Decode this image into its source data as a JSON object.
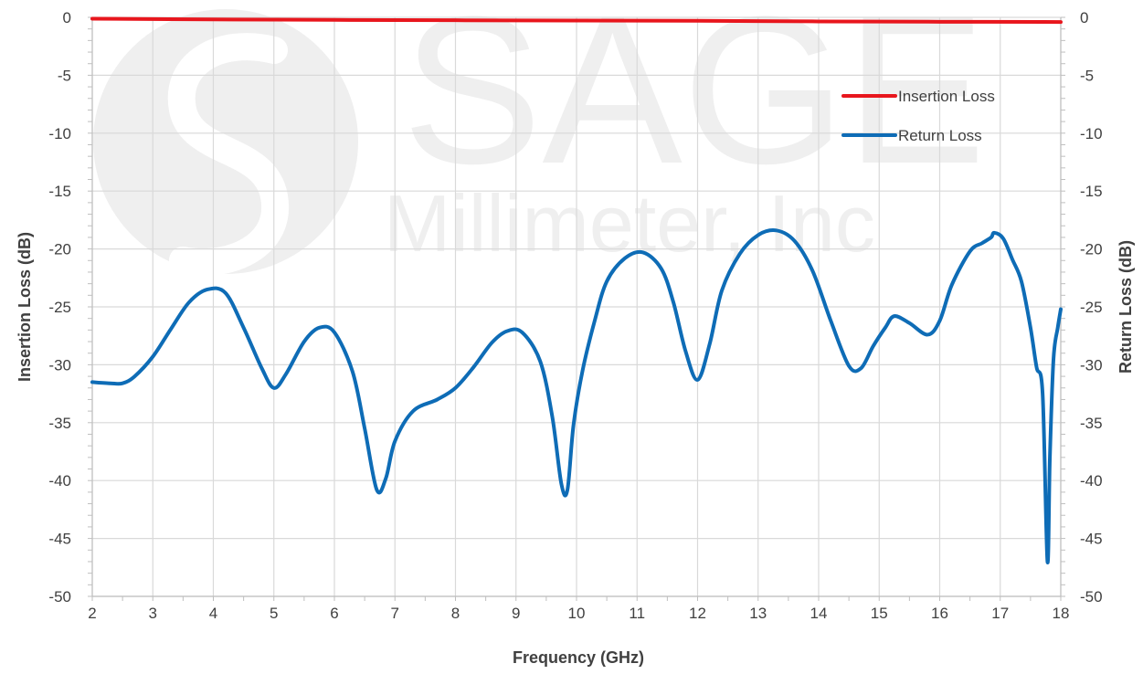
{
  "chart_data": {
    "type": "line",
    "xlabel": "Frequency (GHz)",
    "ylabel": "Insertion Loss (dB)",
    "y2label": "Return Loss (dB)",
    "xlim": [
      2,
      18
    ],
    "ylim": [
      -50,
      0
    ],
    "y2lim": [
      -50,
      0
    ],
    "x_ticks": [
      2,
      3,
      4,
      5,
      6,
      7,
      8,
      9,
      10,
      11,
      12,
      13,
      14,
      15,
      16,
      17,
      18
    ],
    "y_ticks": [
      0,
      -5,
      -10,
      -15,
      -20,
      -25,
      -30,
      -35,
      -40,
      -45,
      -50
    ],
    "y2_ticks": [
      0,
      -5,
      -10,
      -15,
      -20,
      -25,
      -30,
      -35,
      -40,
      -45,
      -50
    ],
    "grid": true,
    "legend_position": "top-right",
    "series": [
      {
        "name": "Insertion Loss",
        "axis": "left",
        "color": "#e8161d",
        "x": [
          2,
          4,
          6,
          8,
          10,
          12,
          14,
          16,
          18
        ],
        "y": [
          -0.12,
          -0.18,
          -0.22,
          -0.25,
          -0.28,
          -0.3,
          -0.35,
          -0.38,
          -0.4
        ]
      },
      {
        "name": "Return Loss",
        "axis": "right",
        "color": "#0e6cb6",
        "x": [
          2,
          2.3,
          2.5,
          2.7,
          3,
          3.3,
          3.6,
          3.9,
          4.2,
          4.5,
          4.8,
          5,
          5.2,
          5.5,
          5.75,
          6,
          6.3,
          6.5,
          6.7,
          6.85,
          7,
          7.3,
          7.7,
          8,
          8.3,
          8.6,
          8.85,
          9.1,
          9.4,
          9.6,
          9.75,
          9.85,
          9.95,
          10.1,
          10.3,
          10.5,
          10.8,
          11.1,
          11.4,
          11.6,
          11.8,
          12,
          12.2,
          12.4,
          12.7,
          13,
          13.3,
          13.6,
          13.9,
          14.2,
          14.5,
          14.7,
          14.9,
          15.1,
          15.25,
          15.5,
          15.8,
          16,
          16.2,
          16.5,
          16.7,
          16.85,
          16.9,
          17.05,
          17.2,
          17.35,
          17.5,
          17.6,
          17.7,
          17.78,
          17.82,
          17.88,
          17.95,
          18
        ],
        "y": [
          -31.5,
          -31.6,
          -31.6,
          -31,
          -29.3,
          -26.9,
          -24.6,
          -23.5,
          -23.8,
          -26.8,
          -30.3,
          -32,
          -30.8,
          -28,
          -26.8,
          -27.2,
          -30.6,
          -35.5,
          -40.8,
          -39.8,
          -36.6,
          -34,
          -33,
          -32,
          -30.2,
          -28.1,
          -27.1,
          -27.2,
          -29.7,
          -34.5,
          -40.3,
          -40.8,
          -35.2,
          -30.5,
          -26.2,
          -22.8,
          -20.8,
          -20.3,
          -21.7,
          -24.6,
          -28.8,
          -31.3,
          -28.2,
          -23.6,
          -20.4,
          -18.8,
          -18.4,
          -19.3,
          -21.9,
          -26.2,
          -30.1,
          -30.3,
          -28.4,
          -26.8,
          -25.8,
          -26.4,
          -27.4,
          -26.2,
          -23.1,
          -20.2,
          -19.5,
          -19,
          -18.6,
          -19.1,
          -20.9,
          -22.8,
          -26.8,
          -30.2,
          -32.5,
          -47,
          -38,
          -29.5,
          -26.8,
          -25.2
        ]
      }
    ]
  },
  "watermark": {
    "brand": "SAGE",
    "subtitle": "Millimeter, Inc"
  }
}
